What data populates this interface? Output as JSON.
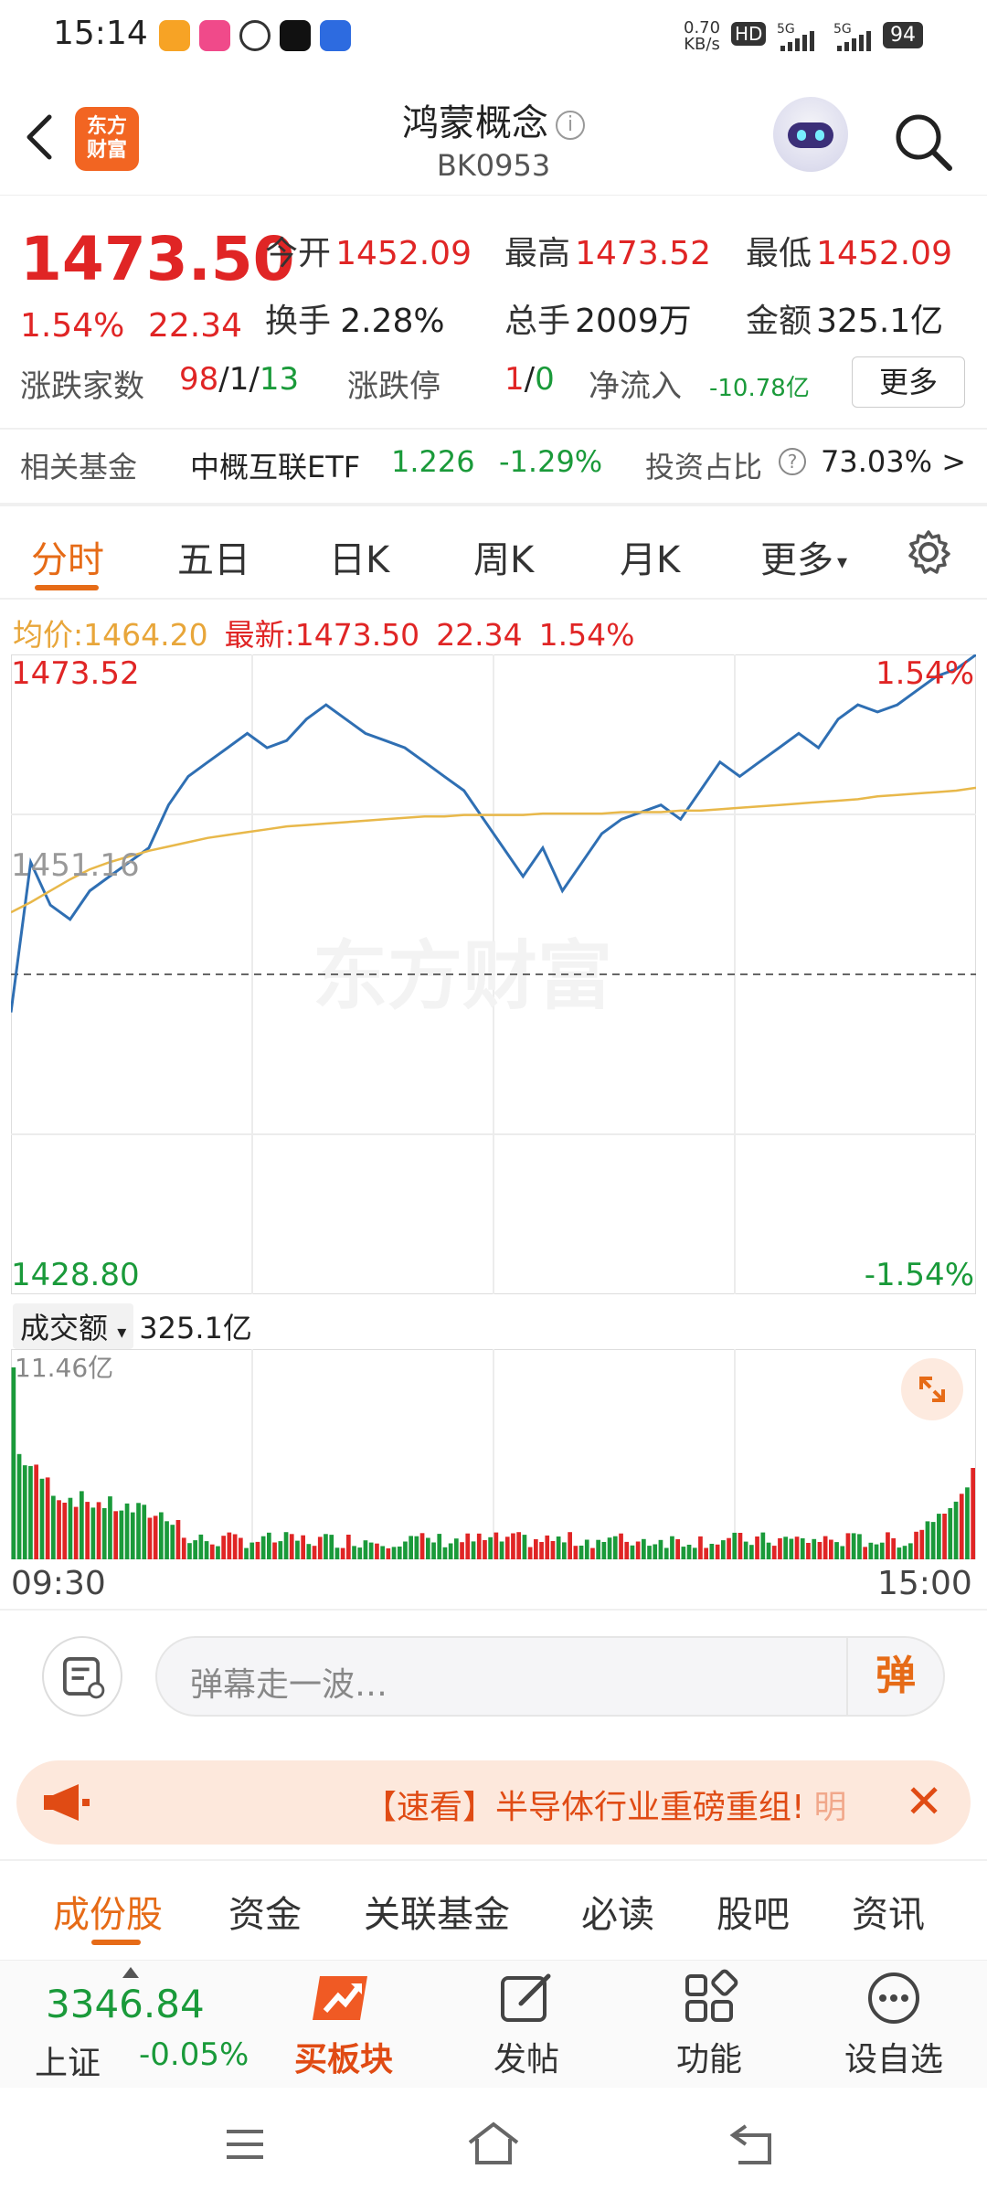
{
  "status_bar": {
    "time": "15:14",
    "net_speed_top": "0.70",
    "net_speed_unit": "KB/s",
    "battery": "94"
  },
  "header": {
    "logo_text": "东方财富",
    "title": "鸿蒙概念",
    "subtitle": "BK0953"
  },
  "quote": {
    "price": "1473.50",
    "change_pct": "1.54%",
    "change_abs": "22.34",
    "open_label": "今开",
    "open": "1452.09",
    "high_label": "最高",
    "high": "1473.52",
    "low_label": "最低",
    "low": "1452.09",
    "turnover_label": "换手",
    "turnover": "2.28%",
    "volume_label": "总手",
    "volume": "2009万",
    "amount_label": "金额",
    "amount": "325.1亿",
    "updown_label": "涨跌家数",
    "up": "98",
    "flat": "1",
    "down": "13",
    "slash": "/",
    "limit_label": "涨跌停",
    "limit_up": "1",
    "limit_down": "0",
    "netflow_label": "净流入",
    "netflow": "-10.78亿",
    "more": "更多"
  },
  "fund": {
    "label": "相关基金",
    "name": "中概互联ETF",
    "price": "1.226",
    "change": "-1.29%",
    "ratio_label": "投资占比",
    "ratio": "73.03%",
    "arrow": ">"
  },
  "tabs": [
    "分时",
    "五日",
    "日K",
    "周K",
    "月K",
    "更多"
  ],
  "avg_row": {
    "avg_label": "均价:",
    "avg": "1464.20",
    "latest_label": "最新:",
    "latest": "1473.50",
    "change": "22.34",
    "pct": "1.54%"
  },
  "chart_labels": {
    "max": "1473.52",
    "mid": "1451.16",
    "min": "1428.80",
    "pct_up": "1.54%",
    "pct_down": "-1.54%",
    "watermark": "东方财富"
  },
  "chart_data": {
    "type": "line",
    "x_range": [
      "09:30",
      "15:00"
    ],
    "ylim": [
      1428.8,
      1473.52
    ],
    "baseline": 1451.16,
    "series": [
      {
        "name": "价格",
        "values": [
          1448.5,
          1459,
          1456,
          1455,
          1457,
          1458,
          1459,
          1460,
          1463,
          1465,
          1466,
          1467,
          1468,
          1467,
          1467.5,
          1469,
          1470,
          1469,
          1468,
          1467.5,
          1467,
          1466,
          1465,
          1464,
          1462,
          1460,
          1458,
          1460,
          1457,
          1459,
          1461,
          1462,
          1462.5,
          1463,
          1462,
          1464,
          1466,
          1465,
          1466,
          1467,
          1468,
          1467,
          1469,
          1470,
          1469.5,
          1470,
          1471,
          1472,
          1472.5,
          1473.5
        ]
      },
      {
        "name": "均价",
        "values": [
          1455.5,
          1456.2,
          1457,
          1457.8,
          1458.5,
          1459,
          1459.4,
          1459.8,
          1460.1,
          1460.4,
          1460.7,
          1460.9,
          1461.1,
          1461.3,
          1461.5,
          1461.6,
          1461.7,
          1461.8,
          1461.9,
          1462,
          1462.1,
          1462.2,
          1462.2,
          1462.3,
          1462.3,
          1462.3,
          1462.3,
          1462.4,
          1462.4,
          1462.4,
          1462.4,
          1462.5,
          1462.5,
          1462.5,
          1462.6,
          1462.6,
          1462.7,
          1462.8,
          1462.9,
          1463,
          1463.1,
          1463.2,
          1463.3,
          1463.4,
          1463.6,
          1463.7,
          1463.8,
          1463.9,
          1464.0,
          1464.2
        ]
      }
    ]
  },
  "volume": {
    "selector": "成交额",
    "value": "325.1亿",
    "max_label": "11.46亿",
    "time_start": "09:30",
    "time_end": "15:00"
  },
  "danmaku": {
    "placeholder": "弹幕走一波…",
    "button": "弹"
  },
  "news": {
    "text": "【速看】半导体行业重磅重组!",
    "suffix": "明"
  },
  "lower_tabs": [
    "成份股",
    "资金",
    "关联基金",
    "必读",
    "股吧",
    "资讯"
  ],
  "bottom_nav": {
    "index_value": "3346.84",
    "index_name": "上证",
    "index_change": "-0.05%",
    "buy": "买板块",
    "post": "发帖",
    "func": "功能",
    "watch": "设自选"
  },
  "colors": {
    "up": "#e02525",
    "down": "#1a9a3a",
    "accent": "#e66b17",
    "price_line": "#2f6fb3",
    "avg_line": "#e8b84a"
  }
}
